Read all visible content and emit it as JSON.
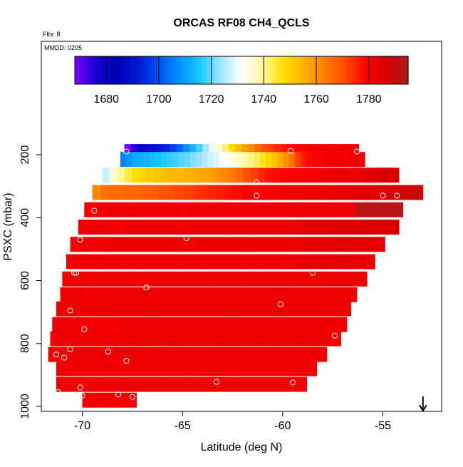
{
  "chart_data": {
    "type": "heatmap",
    "title": "ORCAS RF08 CH4_QCLS",
    "flights_note": "Flts: 8",
    "date_note": "MMDD: 0205",
    "xlabel": "Latitude (deg N)",
    "ylabel": "PSXC (mbar)",
    "xlim": [
      -71.8,
      -52.0
    ],
    "ylim": [
      1010,
      100
    ],
    "x_ticks": [
      -70,
      -65,
      -60,
      -55
    ],
    "x_tick_labels": [
      "-70",
      "-65",
      "-60",
      "-55"
    ],
    "y_ticks": [
      200,
      400,
      600,
      800,
      1000
    ],
    "y_tick_labels": [
      "200",
      "400",
      "600",
      "800",
      "1000"
    ],
    "colorbar": {
      "range": [
        1668,
        1795
      ],
      "ticks": [
        1680,
        1700,
        1720,
        1740,
        1760,
        1780
      ],
      "tick_labels": [
        "1680",
        "1700",
        "1720",
        "1740",
        "1760",
        "1780"
      ],
      "colors": [
        "#7a00ff",
        "#1800d0",
        "#0000b8",
        "#0018d0",
        "#0050f0",
        "#0090ff",
        "#18c8ff",
        "#a0e6ff",
        "#ffffff",
        "#fff8a0",
        "#ffe000",
        "#ffb000",
        "#ff8000",
        "#ff4800",
        "#ff0000",
        "#d80000",
        "#a61e1e"
      ]
    },
    "rows": [
      {
        "p": 190,
        "lat_start": -67.9,
        "lat_end": -56.2,
        "values": [
          1668,
          1675,
          1683,
          1688,
          1690,
          1692,
          1694,
          1698,
          1703,
          1708,
          1713,
          1718,
          1724,
          1730,
          1736,
          1742,
          1748,
          1753,
          1758,
          1762,
          1766,
          1770,
          1772,
          1774,
          1776,
          1778,
          1779,
          1780,
          1781,
          1781,
          1782,
          1782,
          1781,
          1782,
          1783,
          1782
        ]
      },
      {
        "p": 215,
        "lat_start": -68.1,
        "lat_end": -55.9,
        "values": [
          1706,
          1709,
          1711,
          1712,
          1713,
          1714,
          1715,
          1716,
          1717,
          1718,
          1719,
          1720,
          1722,
          1723,
          1725,
          1727,
          1729,
          1731,
          1733,
          1735,
          1737,
          1739,
          1741,
          1743,
          1746,
          1749,
          1752,
          1756,
          1760,
          1766,
          1772,
          1776,
          1778,
          1780,
          1781,
          1782,
          1782,
          1782,
          1781,
          1782,
          1783,
          1782
        ]
      },
      {
        "p": 265,
        "lat_start": -69.0,
        "lat_end": -54.2,
        "values": [
          1727,
          1735,
          1740,
          1744,
          1747,
          1749,
          1751,
          1752,
          1753,
          1754,
          1754,
          1755,
          1756,
          1757,
          1758,
          1760,
          1762,
          1764,
          1767,
          1770,
          1772,
          1775,
          1777,
          1778,
          1779,
          1780,
          1780,
          1781,
          1781,
          1782,
          1782,
          1783,
          1783,
          1782,
          1783,
          1784,
          1785,
          1786,
          1787,
          1788
        ]
      },
      {
        "p": 320,
        "lat_start": -69.5,
        "lat_end": -53.0,
        "values": [
          1762,
          1765,
          1766,
          1766,
          1767,
          1767,
          1768,
          1768,
          1769,
          1770,
          1771,
          1772,
          1773,
          1774,
          1775,
          1776,
          1777,
          1778,
          1779,
          1780,
          1780,
          1781,
          1781,
          1782,
          1782,
          1782,
          1783,
          1783,
          1783,
          1784,
          1784,
          1785,
          1785,
          1785,
          1786,
          1786,
          1787,
          1788,
          1789,
          1790
        ]
      },
      {
        "p": 375,
        "lat_start": -69.9,
        "lat_end": -54.0,
        "values": [
          1781,
          1781,
          1782,
          1782,
          1782,
          1782,
          1781,
          1782,
          1782,
          1782,
          1782,
          1782,
          1781,
          1782,
          1782,
          1782,
          1782,
          1782,
          1782,
          1782,
          1782,
          1782,
          1782,
          1782,
          1782,
          1782,
          1782,
          1782,
          1782,
          1782,
          1782,
          1782,
          1782,
          1782,
          1792,
          1792,
          1792,
          1792,
          1792,
          1792
        ]
      },
      {
        "p": 430,
        "lat_start": -70.2,
        "lat_end": -54.2,
        "values": [
          1781,
          1782,
          1782,
          1782,
          1781,
          1781,
          1782,
          1782,
          1782,
          1782,
          1782,
          1782,
          1782,
          1781,
          1782,
          1782,
          1782,
          1782,
          1782,
          1782,
          1782,
          1782,
          1782,
          1782,
          1782,
          1782,
          1782,
          1783,
          1785,
          1785,
          1785,
          1785,
          1786,
          1786,
          1786,
          1786,
          1786,
          1786,
          1786,
          1787
        ]
      },
      {
        "p": 485,
        "lat_start": -70.6,
        "lat_end": -54.9,
        "values": [
          1781,
          1782,
          1781,
          1782,
          1782,
          1782,
          1782,
          1782,
          1782,
          1782,
          1782,
          1782,
          1782,
          1782,
          1782,
          1782,
          1782,
          1782,
          1782,
          1782,
          1782,
          1782,
          1782,
          1782,
          1782,
          1782,
          1782,
          1783,
          1783,
          1784,
          1784,
          1784,
          1785,
          1785,
          1785,
          1784,
          1784,
          1784,
          1784
        ]
      },
      {
        "p": 540,
        "lat_start": -70.8,
        "lat_end": -55.4,
        "values": [
          1782,
          1782,
          1782,
          1782,
          1782,
          1782,
          1782,
          1782,
          1782,
          1782,
          1782,
          1782,
          1782,
          1782,
          1782,
          1782,
          1782,
          1782,
          1782,
          1782,
          1782,
          1782,
          1782,
          1782,
          1782,
          1782,
          1782,
          1782,
          1783,
          1784,
          1784,
          1784,
          1784,
          1784,
          1784,
          1784,
          1784,
          1784
        ]
      },
      {
        "p": 595,
        "lat_start": -71.0,
        "lat_end": -55.8,
        "values": [
          1782,
          1782,
          1782,
          1782,
          1782,
          1782,
          1782,
          1782,
          1782,
          1782,
          1782,
          1782,
          1782,
          1782,
          1782,
          1782,
          1782,
          1782,
          1782,
          1782,
          1782,
          1782,
          1782,
          1782,
          1782,
          1782,
          1782,
          1782,
          1782,
          1782,
          1782,
          1782,
          1782,
          1783,
          1783,
          1783,
          1783,
          1783
        ]
      },
      {
        "p": 645,
        "lat_start": -71.1,
        "lat_end": -56.3,
        "values": [
          1782,
          1782,
          1782,
          1781,
          1781,
          1782,
          1782,
          1782,
          1782,
          1782,
          1782,
          1782,
          1782,
          1782,
          1782,
          1782,
          1782,
          1782,
          1782,
          1782,
          1782,
          1782,
          1782,
          1782,
          1782,
          1782,
          1782,
          1782,
          1782,
          1782,
          1782,
          1782,
          1782,
          1782,
          1782,
          1782,
          1782
        ]
      },
      {
        "p": 690,
        "lat_start": -71.3,
        "lat_end": -56.6,
        "values": [
          1782,
          1782,
          1782,
          1782,
          1782,
          1782,
          1782,
          1782,
          1782,
          1782,
          1782,
          1782,
          1782,
          1782,
          1782,
          1782,
          1782,
          1782,
          1782,
          1782,
          1782,
          1782,
          1782,
          1782,
          1782,
          1782,
          1782,
          1782,
          1782,
          1782,
          1782,
          1782,
          1782,
          1782,
          1782,
          1782,
          1782
        ]
      },
      {
        "p": 740,
        "lat_start": -71.5,
        "lat_end": -56.8,
        "values": [
          1782,
          1782,
          1782,
          1782,
          1781,
          1781,
          1781,
          1781,
          1782,
          1782,
          1782,
          1782,
          1782,
          1782,
          1782,
          1782,
          1782,
          1782,
          1782,
          1782,
          1782,
          1782,
          1782,
          1782,
          1782,
          1782,
          1782,
          1782,
          1782,
          1782,
          1782,
          1782,
          1782,
          1782,
          1782,
          1782,
          1782
        ]
      },
      {
        "p": 785,
        "lat_start": -71.6,
        "lat_end": -57.1,
        "values": [
          1782,
          1782,
          1782,
          1782,
          1782,
          1782,
          1782,
          1782,
          1782,
          1782,
          1782,
          1782,
          1782,
          1782,
          1782,
          1782,
          1782,
          1782,
          1782,
          1782,
          1782,
          1782,
          1782,
          1782,
          1782,
          1782,
          1782,
          1782,
          1782,
          1782,
          1782,
          1782,
          1782,
          1782,
          1782,
          1782
        ]
      },
      {
        "p": 835,
        "lat_start": -71.7,
        "lat_end": -57.8,
        "values": [
          1783,
          1783,
          1783,
          1783,
          1783,
          1783,
          1783,
          1783,
          1783,
          1783,
          1783,
          1783,
          1783,
          1783,
          1783,
          1782,
          1782,
          1782,
          1782,
          1782,
          1782,
          1782,
          1782,
          1782,
          1782,
          1782,
          1782,
          1782,
          1782,
          1782,
          1782,
          1782,
          1782,
          1782,
          1782
        ]
      },
      {
        "p": 880,
        "lat_start": -71.3,
        "lat_end": -58.3,
        "values": [
          1782,
          1782,
          1782,
          1782,
          1782,
          1782,
          1782,
          1782,
          1782,
          1782,
          1782,
          1782,
          1782,
          1782,
          1782,
          1782,
          1782,
          1782,
          1782,
          1782,
          1782,
          1782,
          1782,
          1782,
          1782,
          1782,
          1782,
          1782,
          1782,
          1782,
          1782,
          1782,
          1782
        ]
      },
      {
        "p": 930,
        "lat_start": -71.3,
        "lat_end": -58.8,
        "values": [
          1782,
          1782,
          1782,
          1782,
          1782,
          1782,
          1782,
          1782,
          1782,
          1782,
          1782,
          1782,
          1782,
          1782,
          1782,
          1782,
          1782,
          1782,
          1782,
          1782,
          1782,
          1782,
          1782,
          1782,
          1782,
          1782,
          1782,
          1782,
          1782,
          1782,
          1782,
          1782
        ]
      },
      {
        "p": 980,
        "lat_start": -70.0,
        "lat_end": -67.3,
        "values": [
          1782,
          1782,
          1782,
          1782,
          1782,
          1782,
          1782
        ]
      }
    ],
    "points": [
      {
        "x": -67.8,
        "y": 190
      },
      {
        "x": -62.8,
        "y": 190
      },
      {
        "x": -59.6,
        "y": 188
      },
      {
        "x": -56.3,
        "y": 190
      },
      {
        "x": -61.3,
        "y": 288
      },
      {
        "x": -61.3,
        "y": 330
      },
      {
        "x": -55.0,
        "y": 330
      },
      {
        "x": -54.3,
        "y": 330
      },
      {
        "x": -69.4,
        "y": 378
      },
      {
        "x": -70.1,
        "y": 470
      },
      {
        "x": -64.8,
        "y": 465
      },
      {
        "x": -70.4,
        "y": 575
      },
      {
        "x": -70.3,
        "y": 575
      },
      {
        "x": -58.5,
        "y": 575
      },
      {
        "x": -66.8,
        "y": 622
      },
      {
        "x": -70.6,
        "y": 695
      },
      {
        "x": -60.1,
        "y": 675
      },
      {
        "x": -69.9,
        "y": 755
      },
      {
        "x": -57.4,
        "y": 775
      },
      {
        "x": -71.3,
        "y": 835
      },
      {
        "x": -70.9,
        "y": 845
      },
      {
        "x": -70.6,
        "y": 818
      },
      {
        "x": -68.7,
        "y": 826
      },
      {
        "x": -67.8,
        "y": 855
      },
      {
        "x": -63.3,
        "y": 922
      },
      {
        "x": -59.5,
        "y": 924
      },
      {
        "x": -70.1,
        "y": 940
      },
      {
        "x": -71.2,
        "y": 955
      },
      {
        "x": -70.0,
        "y": 965
      },
      {
        "x": -68.2,
        "y": 962
      },
      {
        "x": -67.5,
        "y": 970
      }
    ],
    "arrow": {
      "x": -53.0,
      "direction": "down"
    }
  }
}
